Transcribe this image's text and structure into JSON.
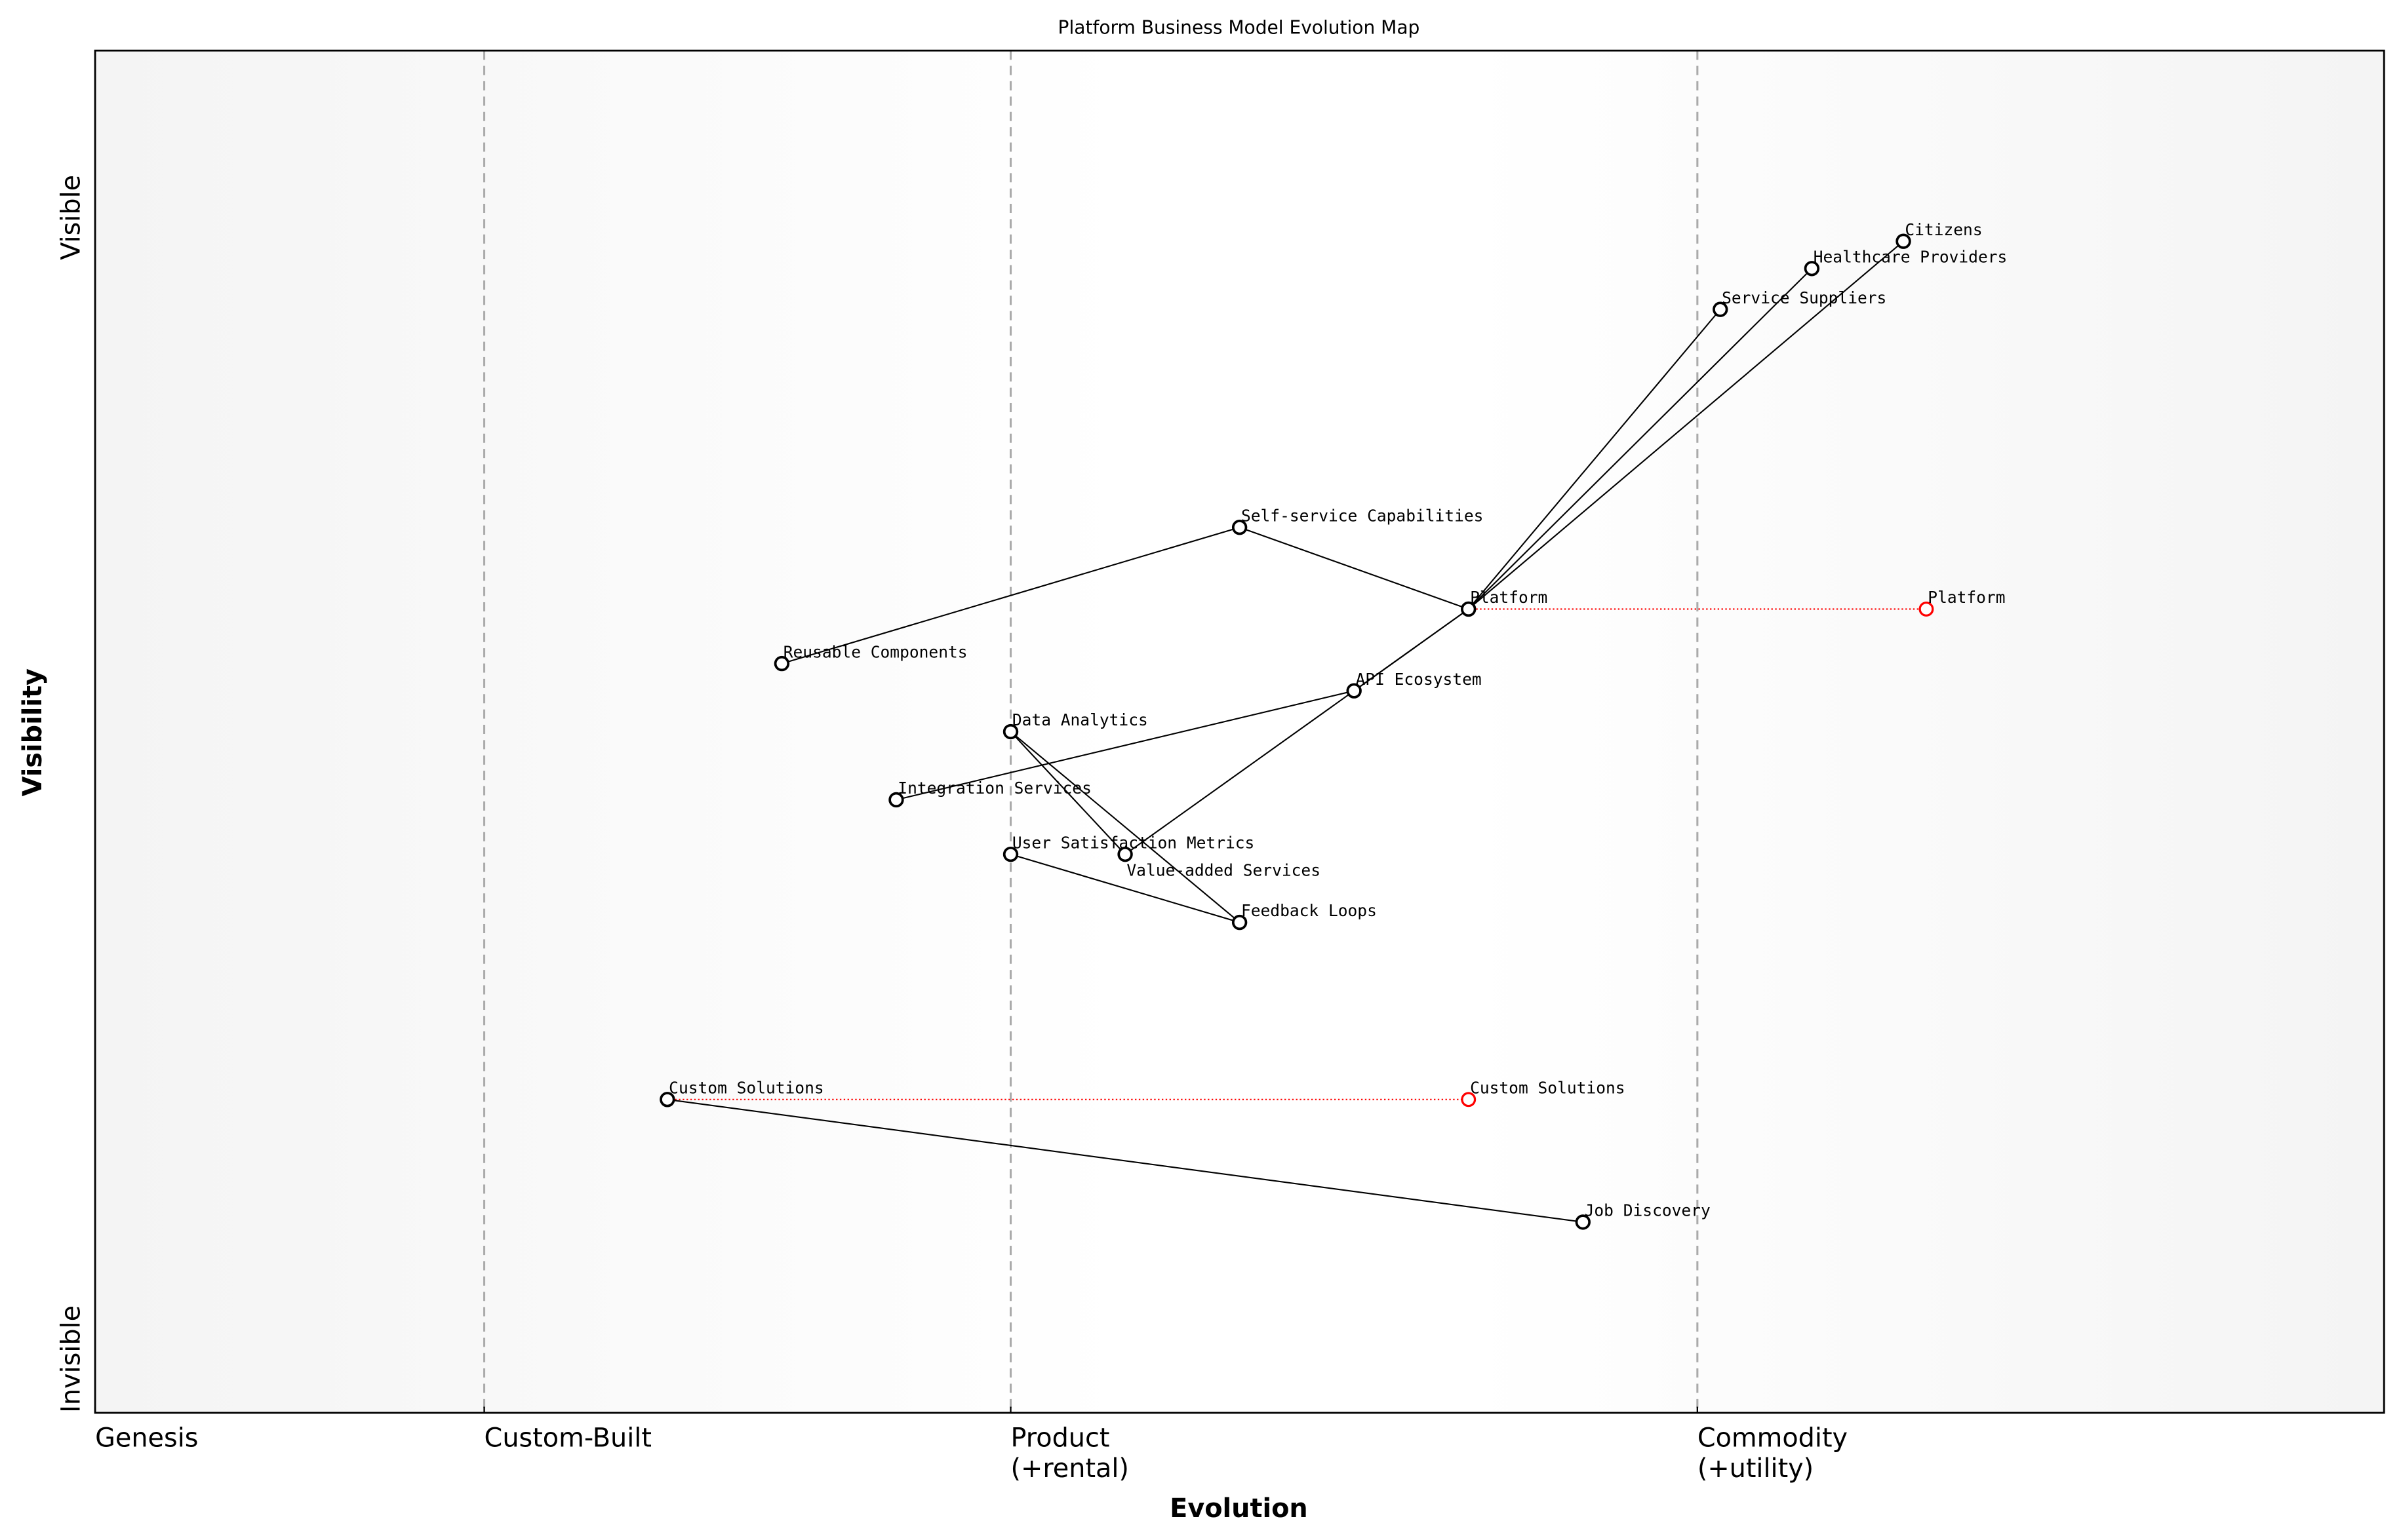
{
  "chart_data": {
    "type": "scatter",
    "title": "Platform Business Model Evolution Map",
    "xlabel": "Evolution",
    "ylabel": "Visibility",
    "xlim": [
      0,
      1
    ],
    "ylim": [
      0,
      1
    ],
    "grid": false,
    "x_ticks": [
      {
        "value": 0,
        "label": "Genesis"
      },
      {
        "value": 0.17,
        "label": "Custom-Built"
      },
      {
        "value": 0.4,
        "label": "Product\n(+rental)"
      },
      {
        "value": 0.7,
        "label": "Commodity\n(+utility)"
      }
    ],
    "y_ticks": [
      {
        "value": 0.88,
        "label": "Visible"
      },
      {
        "value": 0.0,
        "label": "Invisible"
      }
    ],
    "stage_boundaries": [
      0.17,
      0.4,
      0.7
    ],
    "colors": {
      "node": "#000000",
      "evolution": "#ff0000",
      "boundary": "#aaaaaa",
      "background_edge": "#f5f5f5",
      "background_center": "#ffffff"
    },
    "components": [
      {
        "name": "Citizens",
        "x": 0.79,
        "y": 0.86
      },
      {
        "name": "Healthcare Providers",
        "x": 0.75,
        "y": 0.84
      },
      {
        "name": "Service Suppliers",
        "x": 0.71,
        "y": 0.81
      },
      {
        "name": "Self-service Capabilities",
        "x": 0.5,
        "y": 0.65
      },
      {
        "name": "Platform",
        "x": 0.6,
        "y": 0.59
      },
      {
        "name": "Reusable Components",
        "x": 0.3,
        "y": 0.55
      },
      {
        "name": "API Ecosystem",
        "x": 0.55,
        "y": 0.53
      },
      {
        "name": "Data Analytics",
        "x": 0.4,
        "y": 0.5
      },
      {
        "name": "Integration Services",
        "x": 0.35,
        "y": 0.45
      },
      {
        "name": "User Satisfaction Metrics",
        "x": 0.4,
        "y": 0.41
      },
      {
        "name": "Value-added Services",
        "x": 0.45,
        "y": 0.41
      },
      {
        "name": "Feedback Loops",
        "x": 0.5,
        "y": 0.36
      },
      {
        "name": "Custom Solutions",
        "x": 0.25,
        "y": 0.23
      },
      {
        "name": "Job Discovery",
        "x": 0.65,
        "y": 0.14
      }
    ],
    "links": [
      [
        "Reusable Components",
        "Self-service Capabilities"
      ],
      [
        "Self-service Capabilities",
        "Platform"
      ],
      [
        "Platform",
        "Service Suppliers"
      ],
      [
        "Platform",
        "Healthcare Providers"
      ],
      [
        "Platform",
        "Citizens"
      ],
      [
        "Platform",
        "API Ecosystem"
      ],
      [
        "Platform",
        "Value-added Services"
      ],
      [
        "Integration Services",
        "API Ecosystem"
      ],
      [
        "Data Analytics",
        "Value-added Services"
      ],
      [
        "Data Analytics",
        "Feedback Loops"
      ],
      [
        "User Satisfaction Metrics",
        "Feedback Loops"
      ],
      [
        "Custom Solutions",
        "Job Discovery"
      ]
    ],
    "evolutions": [
      {
        "name": "Platform",
        "from_x": 0.6,
        "to_x": 0.8,
        "y": 0.59
      },
      {
        "name": "Custom Solutions",
        "from_x": 0.25,
        "to_x": 0.6,
        "y": 0.23
      }
    ]
  }
}
